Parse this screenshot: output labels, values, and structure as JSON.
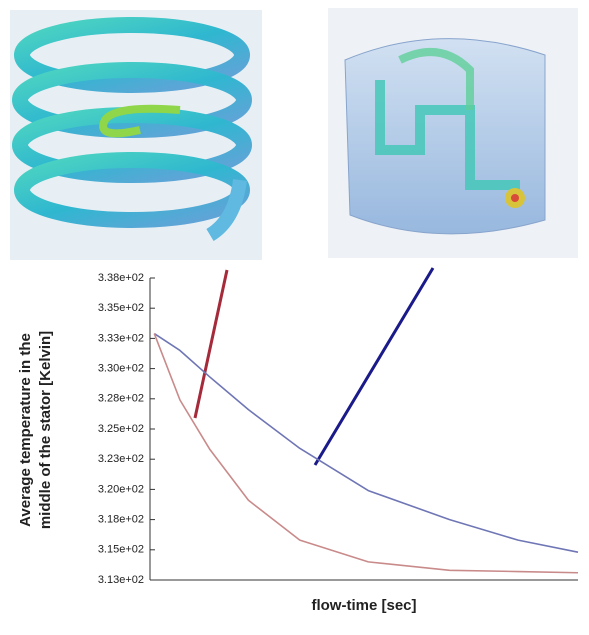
{
  "chart_data": {
    "type": "line",
    "xlabel": "flow-time [sec]",
    "ylabel": [
      "Average temperature in the",
      "middle of the stator [Kelvin]"
    ],
    "x": [
      1,
      7,
      14,
      23,
      35,
      51,
      70,
      86,
      100
    ],
    "xlim": [
      0,
      100
    ],
    "series": [
      {
        "color": "#6f76b5",
        "values": [
          333.4,
          332.0,
          329.8,
          327.1,
          323.9,
          320.4,
          318.0,
          316.3,
          315.3
        ]
      },
      {
        "color": "#c98a8a",
        "values": [
          333.4,
          327.9,
          323.8,
          319.6,
          316.3,
          314.5,
          313.8,
          313.7,
          313.6
        ]
      }
    ],
    "ylim": [
      313,
      338
    ],
    "yticks": [
      {
        "value": 338,
        "label": "3.38e+02"
      },
      {
        "value": 335.5,
        "label": "3.35e+02"
      },
      {
        "value": 333,
        "label": "3.33e+02"
      },
      {
        "value": 330.5,
        "label": "3.30e+02"
      },
      {
        "value": 328,
        "label": "3.28e+02"
      },
      {
        "value": 325.5,
        "label": "3.25e+02"
      },
      {
        "value": 323,
        "label": "3.23e+02"
      },
      {
        "value": 320.5,
        "label": "3.20e+02"
      },
      {
        "value": 318,
        "label": "3.18e+02"
      },
      {
        "value": 315.5,
        "label": "3.15e+02"
      },
      {
        "value": 313,
        "label": "3.13e+02"
      }
    ]
  }
}
